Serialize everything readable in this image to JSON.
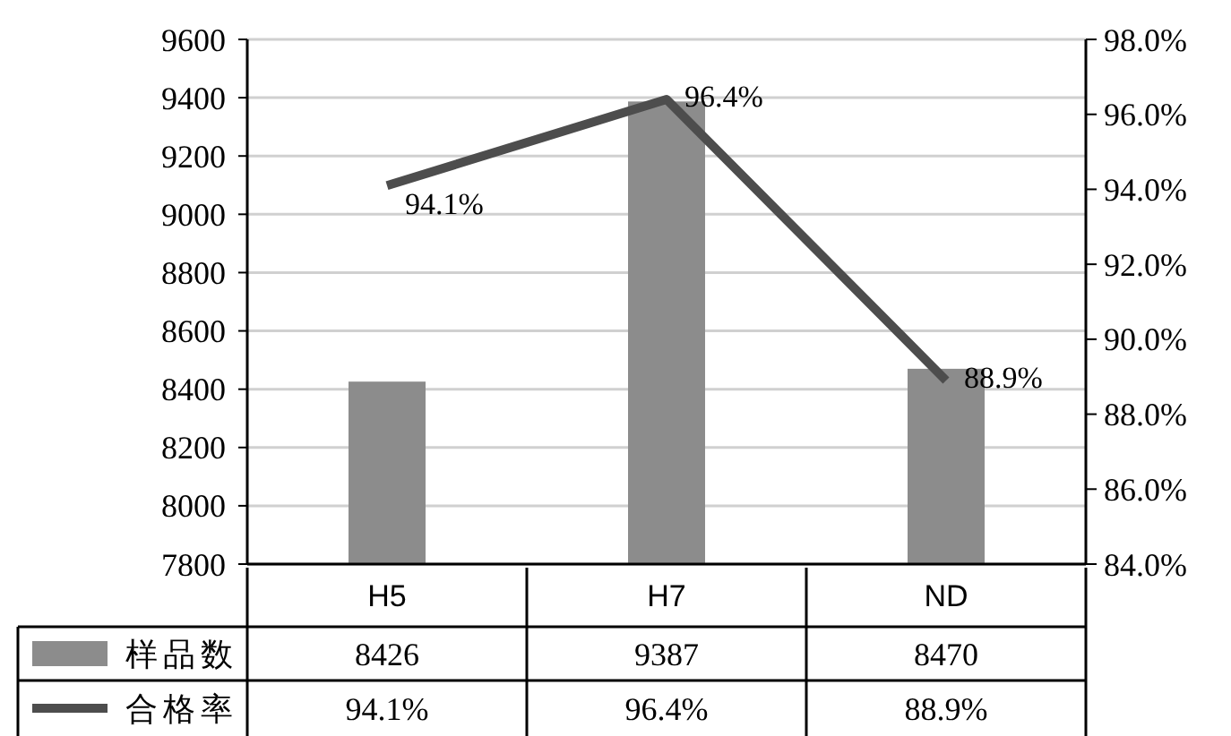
{
  "chart_data": {
    "type": "bar",
    "categories": [
      "H5",
      "H7",
      "ND"
    ],
    "series": [
      {
        "name": "样品数",
        "color": "#8c8c8c",
        "values": [
          8426,
          9387,
          8470
        ]
      },
      {
        "name": "合格率",
        "type": "line",
        "axis": "y2",
        "color": "#4d4d4d",
        "values": [
          94.1,
          96.4,
          88.9
        ],
        "value_labels": [
          "94.1%",
          "96.4%",
          "88.9%"
        ]
      }
    ],
    "ylim": [
      7800,
      9600
    ],
    "yticks": [
      7800,
      8000,
      8200,
      8400,
      8600,
      8800,
      9000,
      9200,
      9400,
      9600
    ],
    "y2lim": [
      84,
      98
    ],
    "y2ticks": [
      {
        "value": 84,
        "label": "84.0%"
      },
      {
        "value": 86,
        "label": "86.0%"
      },
      {
        "value": 88,
        "label": "88.0%"
      },
      {
        "value": 90,
        "label": "90.0%"
      },
      {
        "value": 92,
        "label": "92.0%"
      },
      {
        "value": 94,
        "label": "94.0%"
      },
      {
        "value": 96,
        "label": "96.0%"
      },
      {
        "value": 98,
        "label": "98.0%"
      }
    ],
    "grid": "y",
    "legend": "bottom",
    "data_labels": true,
    "marker": "none"
  }
}
